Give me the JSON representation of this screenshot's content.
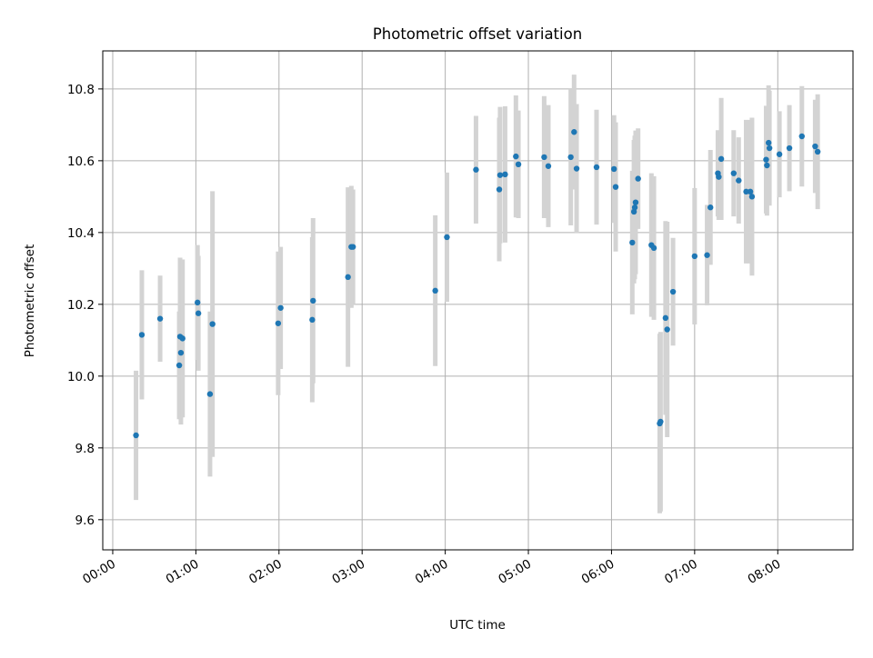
{
  "chart_data": {
    "type": "scatter",
    "title": "Photometric offset variation",
    "xlabel": "UTC time",
    "ylabel": "Photometric offset",
    "x_unit": "hours since 00:00 UTC",
    "xlim": [
      -0.12,
      8.905
    ],
    "ylim": [
      9.516,
      10.906
    ],
    "grid": true,
    "xticks": [
      {
        "value": 0,
        "label": "00:00"
      },
      {
        "value": 1,
        "label": "01:00"
      },
      {
        "value": 2,
        "label": "02:00"
      },
      {
        "value": 3,
        "label": "03:00"
      },
      {
        "value": 4,
        "label": "04:00"
      },
      {
        "value": 5,
        "label": "05:00"
      },
      {
        "value": 6,
        "label": "06:00"
      },
      {
        "value": 7,
        "label": "07:00"
      },
      {
        "value": 8,
        "label": "08:00"
      }
    ],
    "yticks": [
      {
        "value": 9.6,
        "label": "9.6"
      },
      {
        "value": 9.8,
        "label": "9.8"
      },
      {
        "value": 10.0,
        "label": "10.0"
      },
      {
        "value": 10.2,
        "label": "10.2"
      },
      {
        "value": 10.4,
        "label": "10.4"
      },
      {
        "value": 10.6,
        "label": "10.6"
      },
      {
        "value": 10.8,
        "label": "10.8"
      }
    ],
    "colors": {
      "point": "#1f77b4",
      "errorbar": "#d3d3d3",
      "grid": "#b0b0b0"
    },
    "points": [
      {
        "x": 0.28,
        "y": 9.835,
        "err": 0.18
      },
      {
        "x": 0.35,
        "y": 10.115,
        "err": 0.18
      },
      {
        "x": 0.57,
        "y": 10.16,
        "err": 0.12
      },
      {
        "x": 0.8,
        "y": 10.03,
        "err": 0.15
      },
      {
        "x": 0.81,
        "y": 10.11,
        "err": 0.22
      },
      {
        "x": 0.82,
        "y": 10.065,
        "err": 0.2
      },
      {
        "x": 0.84,
        "y": 10.105,
        "err": 0.22
      },
      {
        "x": 1.02,
        "y": 10.205,
        "err": 0.16
      },
      {
        "x": 1.03,
        "y": 10.175,
        "err": 0.16
      },
      {
        "x": 1.17,
        "y": 9.95,
        "err": 0.23
      },
      {
        "x": 1.2,
        "y": 10.145,
        "err": 0.37
      },
      {
        "x": 1.99,
        "y": 10.147,
        "err": 0.2
      },
      {
        "x": 2.02,
        "y": 10.19,
        "err": 0.17
      },
      {
        "x": 2.4,
        "y": 10.157,
        "err": 0.23
      },
      {
        "x": 2.41,
        "y": 10.21,
        "err": 0.23
      },
      {
        "x": 2.83,
        "y": 10.276,
        "err": 0.25
      },
      {
        "x": 2.87,
        "y": 10.36,
        "err": 0.17
      },
      {
        "x": 2.89,
        "y": 10.36,
        "err": 0.16
      },
      {
        "x": 3.88,
        "y": 10.238,
        "err": 0.21
      },
      {
        "x": 4.02,
        "y": 10.387,
        "err": 0.18
      },
      {
        "x": 4.37,
        "y": 10.575,
        "err": 0.15
      },
      {
        "x": 4.65,
        "y": 10.52,
        "err": 0.2
      },
      {
        "x": 4.66,
        "y": 10.56,
        "err": 0.19
      },
      {
        "x": 4.72,
        "y": 10.562,
        "err": 0.19
      },
      {
        "x": 4.85,
        "y": 10.612,
        "err": 0.17
      },
      {
        "x": 4.88,
        "y": 10.59,
        "err": 0.15
      },
      {
        "x": 5.19,
        "y": 10.61,
        "err": 0.17
      },
      {
        "x": 5.24,
        "y": 10.585,
        "err": 0.17
      },
      {
        "x": 5.51,
        "y": 10.61,
        "err": 0.19
      },
      {
        "x": 5.55,
        "y": 10.68,
        "err": 0.16
      },
      {
        "x": 5.58,
        "y": 10.578,
        "err": 0.18
      },
      {
        "x": 5.82,
        "y": 10.582,
        "err": 0.16
      },
      {
        "x": 6.03,
        "y": 10.577,
        "err": 0.15
      },
      {
        "x": 6.05,
        "y": 10.527,
        "err": 0.18
      },
      {
        "x": 6.25,
        "y": 10.372,
        "err": 0.2
      },
      {
        "x": 6.27,
        "y": 10.458,
        "err": 0.2
      },
      {
        "x": 6.28,
        "y": 10.47,
        "err": 0.2
      },
      {
        "x": 6.29,
        "y": 10.484,
        "err": 0.2
      },
      {
        "x": 6.32,
        "y": 10.55,
        "err": 0.14
      },
      {
        "x": 6.48,
        "y": 10.365,
        "err": 0.2
      },
      {
        "x": 6.51,
        "y": 10.357,
        "err": 0.2
      },
      {
        "x": 6.58,
        "y": 9.868,
        "err": 0.25
      },
      {
        "x": 6.59,
        "y": 9.873,
        "err": 0.25
      },
      {
        "x": 6.65,
        "y": 10.162,
        "err": 0.27
      },
      {
        "x": 6.67,
        "y": 10.13,
        "err": 0.3
      },
      {
        "x": 6.74,
        "y": 10.235,
        "err": 0.15
      },
      {
        "x": 7.0,
        "y": 10.334,
        "err": 0.19
      },
      {
        "x": 7.15,
        "y": 10.337,
        "err": 0.14
      },
      {
        "x": 7.19,
        "y": 10.47,
        "err": 0.16
      },
      {
        "x": 7.28,
        "y": 10.565,
        "err": 0.12
      },
      {
        "x": 7.29,
        "y": 10.555,
        "err": 0.12
      },
      {
        "x": 7.32,
        "y": 10.605,
        "err": 0.17
      },
      {
        "x": 7.47,
        "y": 10.565,
        "err": 0.12
      },
      {
        "x": 7.53,
        "y": 10.545,
        "err": 0.12
      },
      {
        "x": 7.62,
        "y": 10.514,
        "err": 0.2
      },
      {
        "x": 7.67,
        "y": 10.514,
        "err": 0.2
      },
      {
        "x": 7.69,
        "y": 10.5,
        "err": 0.22
      },
      {
        "x": 7.86,
        "y": 10.603,
        "err": 0.15
      },
      {
        "x": 7.87,
        "y": 10.587,
        "err": 0.14
      },
      {
        "x": 7.89,
        "y": 10.65,
        "err": 0.16
      },
      {
        "x": 7.9,
        "y": 10.635,
        "err": 0.16
      },
      {
        "x": 8.02,
        "y": 10.618,
        "err": 0.12
      },
      {
        "x": 8.14,
        "y": 10.635,
        "err": 0.12
      },
      {
        "x": 8.29,
        "y": 10.668,
        "err": 0.14
      },
      {
        "x": 8.45,
        "y": 10.64,
        "err": 0.13
      },
      {
        "x": 8.48,
        "y": 10.625,
        "err": 0.16
      }
    ]
  }
}
